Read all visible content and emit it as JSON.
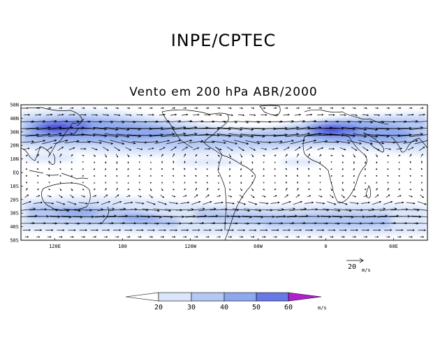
{
  "header": {
    "org": "INPE/CPTEC",
    "title": "Vento em 200 hPa ABR/2000"
  },
  "map": {
    "lat_labels": [
      "50N",
      "40N",
      "30N",
      "20N",
      "10N",
      "EQ",
      "10S",
      "20S",
      "30S",
      "40S",
      "50S"
    ],
    "lon_labels": [
      "120E",
      "180",
      "120W",
      "60W",
      "0",
      "60E"
    ],
    "lon_ticks_deg": [
      120,
      180,
      240,
      300,
      360,
      420
    ],
    "lon_range_deg": [
      90,
      450
    ],
    "lat_range_deg": [
      50,
      -50
    ]
  },
  "reference_vector": {
    "value": "20",
    "unit": "m/s"
  },
  "colorbar": {
    "labels": [
      "20",
      "30",
      "40",
      "50",
      "60"
    ],
    "unit": "m/s",
    "colors": [
      "#ffffff",
      "#dbe6fb",
      "#b3c8f5",
      "#8da8ee",
      "#6878e6",
      "#4a46de",
      "#b21fd0"
    ]
  },
  "shading_colors": {
    "c20": "#dbe6fb",
    "c30": "#b3c8f5",
    "c40": "#8da8ee",
    "c50": "#6878e6",
    "c60": "#4a46de"
  }
}
